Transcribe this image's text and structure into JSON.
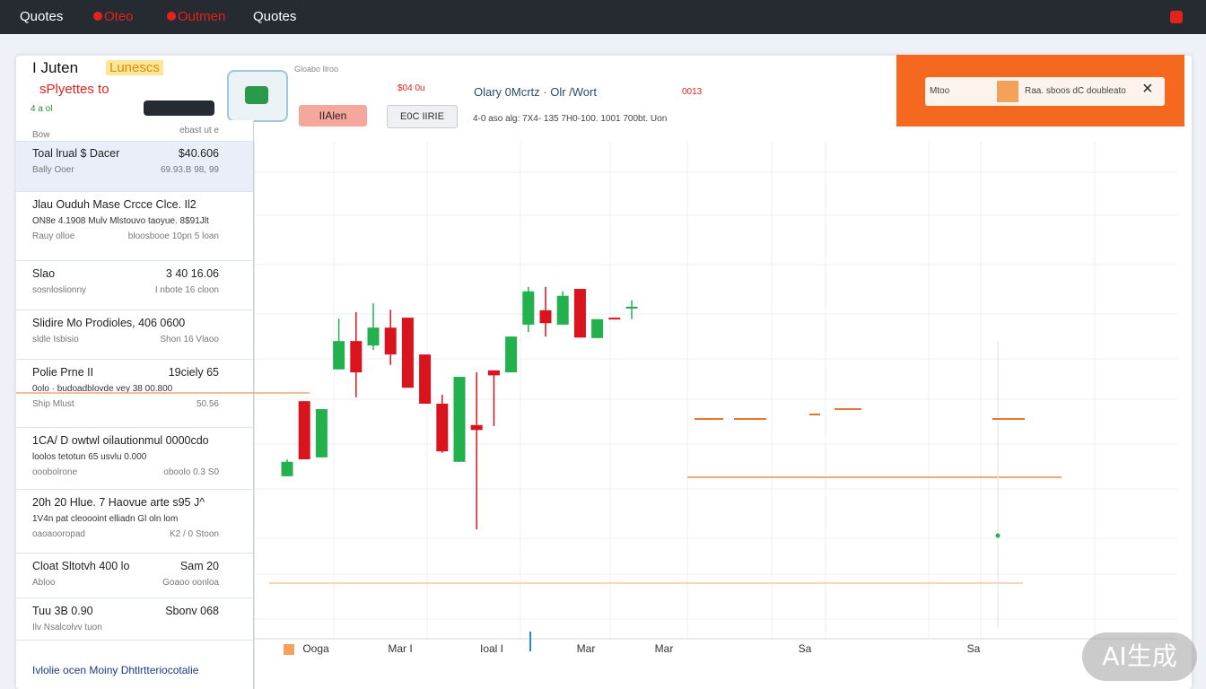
{
  "nav": {
    "items": [
      "Quotes",
      "Oteo",
      "Outmen",
      "Quotes"
    ]
  },
  "header": {
    "title": "I Juten",
    "badge": "Lunescs",
    "subtitle": "sPlyettes to",
    "note": "4 a ol",
    "crumb": "Gloabo Ilroo",
    "button_red": "IIAlen",
    "button_grey": "E0C IIRIE",
    "price_tag": "$04 0u",
    "symbol": "Olary 0Mcrtz · Olr /Wort",
    "code": "0013",
    "stats": "4-0 aso alg: 7X4- 135 7H0-100. 1001 700bt. Uon"
  },
  "alert": {
    "label": "Mtoo",
    "text": "Raa. sboos dC doubleato"
  },
  "sidebar": {
    "head": "Bow",
    "head_value": "ebast ut e",
    "items": [
      {
        "title": "Toal lrual $ Dacer",
        "value": "$40.606",
        "sub": "Bally  Ooer",
        "sub_value": "69.93.B 98, 99"
      },
      {
        "title": "Jlau  Ouduh Mase Crcce Clce. Il2",
        "detail": "ON8e 4.1908 Mulv Mlstouvo taoyue. 8$91Jlt",
        "sub": "Rauy  olloe",
        "sub_value": "bloosbooe 10pn 5 loan"
      },
      {
        "title": "Slao",
        "value": "3 40 16.06",
        "sub": "sosnloslionny",
        "sub_value": "I nbote 16 cloon"
      },
      {
        "title": "Slidire Mo Prodioles, 406 0600",
        "sub": "sldle  Isbisio",
        "sub_value": "Shon 16 Vlaoo"
      },
      {
        "title": "Polie Prne II",
        "value": "19ciely 65",
        "detail": "0olo · budoadblovde vey   38 00.800",
        "sub": "Ship  Mlust",
        "sub_value": "50.56"
      },
      {
        "title": "1CA/ D owtwl oilautionmul 0000cdo",
        "detail": "loolos tetotun 65 usvlu 0.000",
        "sub": "ooobolrone",
        "sub_value": "oboolo 0.3 S0"
      },
      {
        "title": "20h  20 Hlue. 7 Haovue arte s95 J^",
        "detail": "1V4n pat cleoooint elliadn Gl oln lom",
        "sub": "oaoaooropad",
        "sub_value": "K2 / 0 Stoon"
      },
      {
        "title": "Cloat Sltotvh 400 lo",
        "value": "Sam 20",
        "sub": "Abloo",
        "sub_value": "Goaoo oonloa"
      },
      {
        "title": "Tuu  3B 0.90",
        "value": "Sbonv 068",
        "sub": "Ilv Nsalcolvv tuon"
      }
    ],
    "footer": "Ivlolie ocen Moiny Dhtlrtteriocotalie"
  },
  "chart_data": {
    "type": "candlestick",
    "up_color": "#22b14c",
    "down_color": "#d9141c",
    "grid": true,
    "ylim": [
      0,
      100
    ],
    "open": [
      32.7,
      47.8,
      36.5,
      54.2,
      59.9,
      59.0,
      62.6,
      64.6,
      57.2,
      47.3,
      35.6,
      43.0,
      54.0,
      53.6,
      63.2,
      66.1,
      63.2,
      70.4,
      60.5,
      64.6,
      66.5
    ],
    "high": [
      36.1,
      47.8,
      46.2,
      64.4,
      65.7,
      67.5,
      66.2,
      64.6,
      57.2,
      49.1,
      52.7,
      53.6,
      54.0,
      60.8,
      70.8,
      70.8,
      69.9,
      70.4,
      64.3,
      64.6,
      68.1
    ],
    "low": [
      32.7,
      36.1,
      36.5,
      54.2,
      48.6,
      58.1,
      55.1,
      50.5,
      47.3,
      37.4,
      35.6,
      22.0,
      42.8,
      53.6,
      61.7,
      60.8,
      63.2,
      60.6,
      60.5,
      64.3,
      64.3
    ],
    "close": [
      35.6,
      36.1,
      46.2,
      59.9,
      53.6,
      62.6,
      57.2,
      50.5,
      47.3,
      37.7,
      52.7,
      42.0,
      53.0,
      60.8,
      69.9,
      63.5,
      69.0,
      60.6,
      64.3,
      64.3,
      66.8
    ],
    "x_labels": [
      "Ooga",
      "Mar I",
      "Ioal I",
      "Mar",
      "Mar",
      "Sa",
      "Sa"
    ]
  },
  "watermark": "AI生成"
}
